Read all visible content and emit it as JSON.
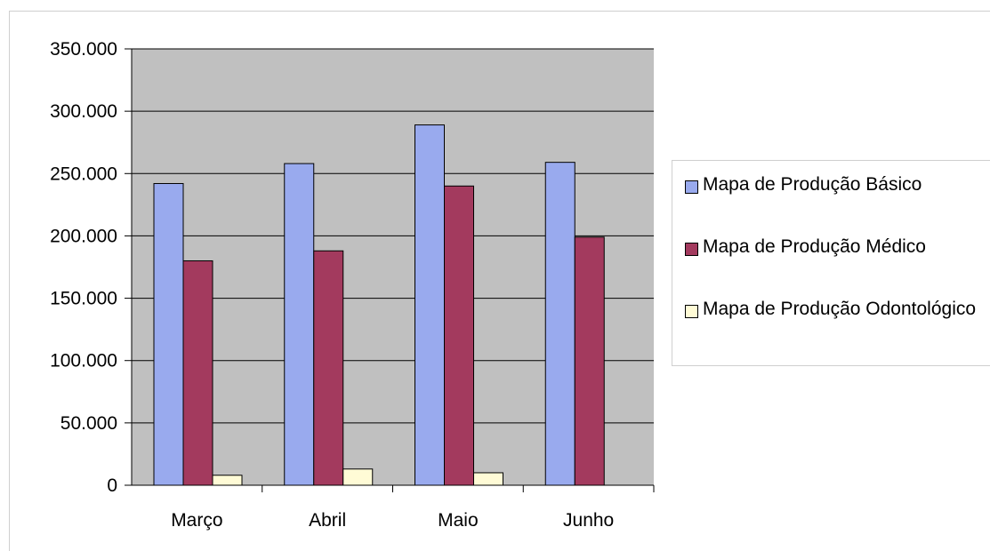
{
  "chart_data": {
    "type": "bar",
    "categories": [
      "Março",
      "Abril",
      "Maio",
      "Junho"
    ],
    "series": [
      {
        "name": "Mapa de Produção Básico",
        "color": "#99aaee",
        "values": [
          242000,
          258000,
          289000,
          259000
        ]
      },
      {
        "name": "Mapa de Produção Médico",
        "color": "#a33a5e",
        "values": [
          180000,
          188000,
          240000,
          199000
        ]
      },
      {
        "name": "Mapa de Produção Odontológico",
        "color": "#fffbd6",
        "values": [
          8000,
          13000,
          10000,
          0
        ]
      }
    ],
    "yticks": [
      "0",
      "50.000",
      "100.000",
      "150.000",
      "200.000",
      "250.000",
      "300.000",
      "350.000"
    ],
    "ylim": [
      0,
      350000
    ],
    "title": "",
    "xlabel": "",
    "ylabel": "",
    "grid": true,
    "legend_position": "right",
    "plot_background": "#c0c0c0"
  }
}
